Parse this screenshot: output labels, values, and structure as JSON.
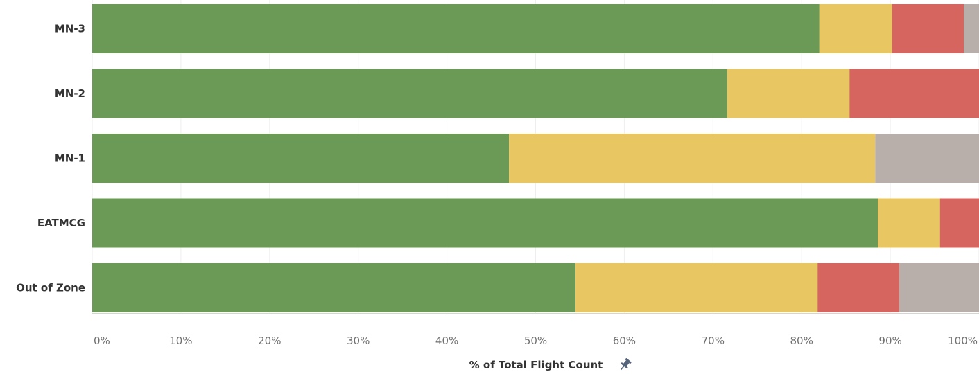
{
  "chart_data": {
    "type": "bar",
    "orientation": "horizontal",
    "stacked": true,
    "categories": [
      "MN-3",
      "MN-2",
      "MN-1",
      "EATMCG",
      "Out of Zone"
    ],
    "series": [
      {
        "color": "#6a9a56",
        "values": [
          82.0,
          71.6,
          47.0,
          88.6,
          54.5
        ]
      },
      {
        "color": "#e8c662",
        "values": [
          8.2,
          13.8,
          41.3,
          7.0,
          27.3
        ]
      },
      {
        "color": "#d6645f",
        "values": [
          8.1,
          14.6,
          0.0,
          4.4,
          9.2
        ]
      },
      {
        "color": "#b8aeaa",
        "values": [
          1.7,
          0.0,
          11.7,
          0.0,
          9.0
        ]
      }
    ],
    "xlabel": "% of Total Flight Count",
    "xlim": [
      0,
      100
    ],
    "x_ticks": [
      "0%",
      "10%",
      "20%",
      "30%",
      "40%",
      "50%",
      "60%",
      "70%",
      "80%",
      "90%",
      "100%"
    ],
    "grid": true,
    "legend": "none",
    "axis_title_icon": "pin-icon"
  }
}
